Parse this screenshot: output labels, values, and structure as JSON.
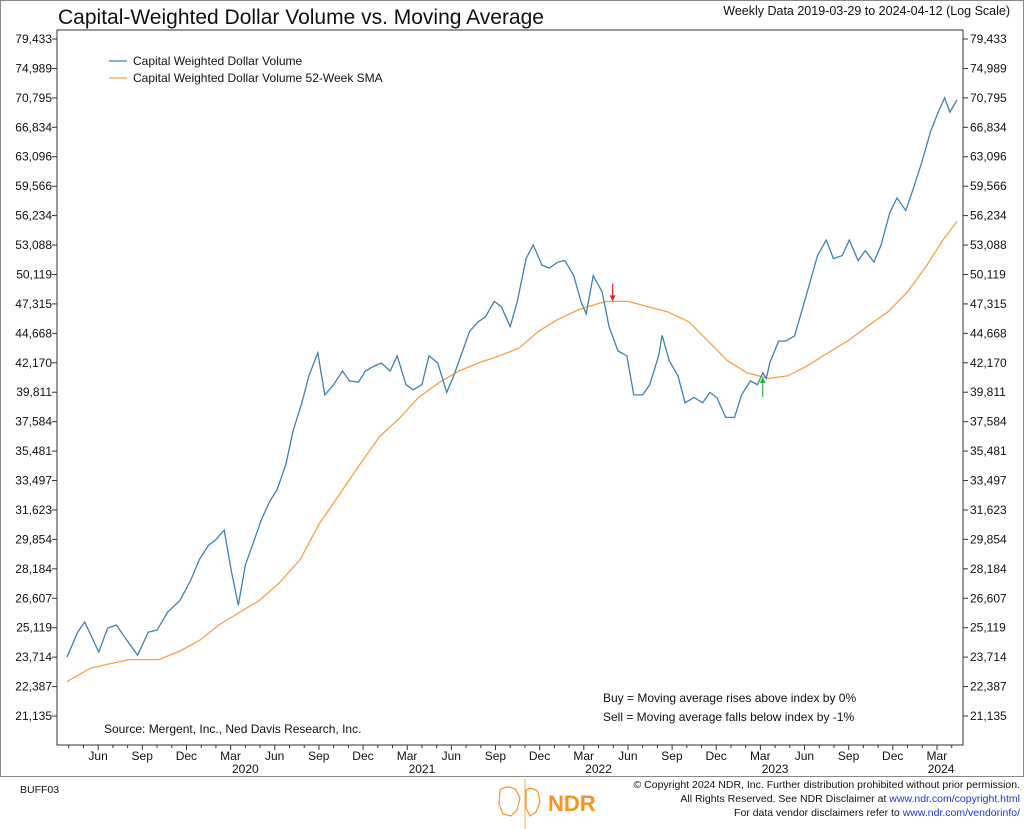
{
  "header": {
    "title": "Capital-Weighted Dollar Volume vs. Moving Average",
    "subtitle": "Weekly Data 2019-03-29 to 2024-04-12 (Log Scale)"
  },
  "chart_data": {
    "type": "line",
    "title": "Capital-Weighted Dollar Volume vs. Moving Average",
    "subtitle": "Weekly Data 2019-03-29 to 2024-04-12 (Log Scale)",
    "xlabel": "",
    "ylabel": "",
    "yscale": "log",
    "ylim": [
      20500,
      81500
    ],
    "xlim": [
      2019.24,
      2024.28
    ],
    "y_ticks": [
      79433,
      74989,
      70795,
      66834,
      63096,
      59566,
      56234,
      53088,
      50119,
      47315,
      44668,
      42170,
      39811,
      37584,
      35481,
      33497,
      31623,
      29854,
      28184,
      26607,
      25119,
      23714,
      22387,
      21135
    ],
    "y_tick_labels": [
      "79,433",
      "74,989",
      "70,795",
      "66,834",
      "63,096",
      "59,566",
      "56,234",
      "53,088",
      "50,119",
      "47,315",
      "44,668",
      "42,170",
      "39,811",
      "37,584",
      "35,481",
      "33,497",
      "31,623",
      "29,854",
      "28,184",
      "26,607",
      "25,119",
      "23,714",
      "22,387",
      "21,135"
    ],
    "x_month_ticks": [
      {
        "x": 2019.416,
        "label": "Jun"
      },
      {
        "x": 2019.666,
        "label": "Sep"
      },
      {
        "x": 2019.916,
        "label": "Dec"
      },
      {
        "x": 2020.166,
        "label": "Mar"
      },
      {
        "x": 2020.416,
        "label": "Jun"
      },
      {
        "x": 2020.666,
        "label": "Sep"
      },
      {
        "x": 2020.916,
        "label": "Dec"
      },
      {
        "x": 2021.166,
        "label": "Mar"
      },
      {
        "x": 2021.416,
        "label": "Jun"
      },
      {
        "x": 2021.666,
        "label": "Sep"
      },
      {
        "x": 2021.916,
        "label": "Dec"
      },
      {
        "x": 2022.166,
        "label": "Mar"
      },
      {
        "x": 2022.416,
        "label": "Jun"
      },
      {
        "x": 2022.666,
        "label": "Sep"
      },
      {
        "x": 2022.916,
        "label": "Dec"
      },
      {
        "x": 2023.166,
        "label": "Mar"
      },
      {
        "x": 2023.416,
        "label": "Jun"
      },
      {
        "x": 2023.666,
        "label": "Sep"
      },
      {
        "x": 2023.916,
        "label": "Dec"
      },
      {
        "x": 2024.166,
        "label": "Mar"
      }
    ],
    "x_year_labels": [
      {
        "x": 2020.25,
        "label": "2020"
      },
      {
        "x": 2021.25,
        "label": "2021"
      },
      {
        "x": 2022.25,
        "label": "2022"
      },
      {
        "x": 2023.25,
        "label": "2023"
      },
      {
        "x": 2024.19,
        "label": "2024"
      }
    ],
    "legend_position": "top-left",
    "series": [
      {
        "name": "Capital Weighted Dollar Volume",
        "color": "#3d82b0",
        "x": [
          2019.24,
          2019.3,
          2019.34,
          2019.42,
          2019.47,
          2019.52,
          2019.58,
          2019.64,
          2019.7,
          2019.75,
          2019.81,
          2019.88,
          2019.94,
          2019.99,
          2020.04,
          2020.08,
          2020.13,
          2020.17,
          2020.21,
          2020.25,
          2020.3,
          2020.34,
          2020.39,
          2020.43,
          2020.48,
          2020.52,
          2020.57,
          2020.61,
          2020.66,
          2020.7,
          2020.75,
          2020.8,
          2020.84,
          2020.89,
          2020.93,
          2020.98,
          2021.02,
          2021.07,
          2021.11,
          2021.16,
          2021.2,
          2021.25,
          2021.29,
          2021.34,
          2021.39,
          2021.43,
          2021.48,
          2021.52,
          2021.57,
          2021.61,
          2021.66,
          2021.7,
          2021.75,
          2021.79,
          2021.84,
          2021.88,
          2021.93,
          2021.97,
          2022.02,
          2022.06,
          2022.11,
          2022.15,
          2022.18,
          2022.22,
          2022.27,
          2022.31,
          2022.36,
          2022.41,
          2022.45,
          2022.5,
          2022.54,
          2022.59,
          2022.61,
          2022.65,
          2022.7,
          2022.74,
          2022.79,
          2022.84,
          2022.88,
          2022.92,
          2022.97,
          2023.02,
          2023.06,
          2023.11,
          2023.15,
          2023.18,
          2023.2,
          2023.22,
          2023.27,
          2023.31,
          2023.36,
          2023.4,
          2023.45,
          2023.49,
          2023.54,
          2023.58,
          2023.63,
          2023.67,
          2023.72,
          2023.76,
          2023.81,
          2023.85,
          2023.9,
          2023.94,
          2023.99,
          2024.03,
          2024.08,
          2024.13,
          2024.17,
          2024.21,
          2024.24,
          2024.28
        ],
        "values": [
          23714,
          24900,
          25400,
          23950,
          25100,
          25250,
          24500,
          23800,
          24900,
          25000,
          25900,
          26500,
          27550,
          28700,
          29500,
          29800,
          30400,
          28100,
          26250,
          28400,
          29800,
          31000,
          32200,
          32900,
          34600,
          36900,
          39000,
          41100,
          43000,
          39600,
          40400,
          41500,
          40700,
          40600,
          41500,
          41900,
          42150,
          41500,
          42750,
          40400,
          40000,
          40400,
          42750,
          42150,
          39800,
          41100,
          43150,
          44850,
          45700,
          46150,
          47550,
          47050,
          45250,
          47550,
          51700,
          53100,
          51050,
          50750,
          51350,
          51500,
          50000,
          47550,
          46400,
          50000,
          48450,
          45250,
          43150,
          42750,
          39600,
          39600,
          40400,
          42750,
          44500,
          42350,
          41100,
          39000,
          39400,
          39000,
          39800,
          39400,
          37900,
          37900,
          39600,
          40700,
          40400,
          41350,
          40900,
          42150,
          44000,
          44000,
          44450,
          46600,
          49500,
          52000,
          53600,
          51700,
          52000,
          53600,
          51500,
          52500,
          51350,
          53100,
          56600,
          58200,
          56800,
          59150,
          62400,
          66250,
          68650,
          70795,
          68850,
          70500
        ]
      },
      {
        "name": "Capital Weighted Dollar Volume 52-Week SMA",
        "color": "#f5a04a",
        "x": [
          2019.24,
          2019.37,
          2019.48,
          2019.59,
          2019.76,
          2019.88,
          2019.99,
          2020.1,
          2020.22,
          2020.33,
          2020.44,
          2020.56,
          2020.67,
          2020.78,
          2020.9,
          2021.01,
          2021.12,
          2021.23,
          2021.35,
          2021.46,
          2021.57,
          2021.69,
          2021.8,
          2021.91,
          2022.02,
          2022.14,
          2022.25,
          2022.3,
          2022.42,
          2022.53,
          2022.64,
          2022.76,
          2022.87,
          2022.98,
          2023.09,
          2023.21,
          2023.32,
          2023.43,
          2023.55,
          2023.66,
          2023.77,
          2023.89,
          2024.0,
          2024.11,
          2024.2,
          2024.28
        ],
        "values": [
          22600,
          23200,
          23400,
          23600,
          23600,
          24000,
          24500,
          25250,
          25900,
          26500,
          27400,
          28700,
          30800,
          32550,
          34600,
          36500,
          37800,
          39400,
          40600,
          41500,
          42150,
          42750,
          43400,
          44850,
          45900,
          46800,
          47350,
          47550,
          47550,
          47050,
          46600,
          45700,
          44000,
          42350,
          41350,
          40900,
          41100,
          41900,
          43000,
          44000,
          45250,
          46600,
          48450,
          51050,
          53600,
          55600
        ]
      }
    ],
    "signals": [
      {
        "type": "sell",
        "x": 2022.33,
        "color": "#e8202a"
      },
      {
        "type": "buy",
        "x": 2023.18,
        "color": "#2fb23a"
      }
    ],
    "annotations": {
      "buy": "Buy = Moving average rises above index by 0%",
      "sell": "Sell = Moving average falls below index by -1%",
      "source": "Source:   Mergent, Inc., Ned Davis Research, Inc."
    }
  },
  "footer": {
    "code": "BUFF03",
    "logo_text": "NDR",
    "copyright": "© Copyright 2024 NDR, Inc. Further distribution prohibited without prior permission.",
    "rights_prefix": "All Rights Reserved. See NDR Disclaimer at ",
    "rights_link": "www.ndr.com/copyright.html",
    "vendor_prefix": "For data vendor disclaimers refer to ",
    "vendor_link": "www.ndr.com/vendorinfo/",
    "logo_color": "#f7931e"
  }
}
